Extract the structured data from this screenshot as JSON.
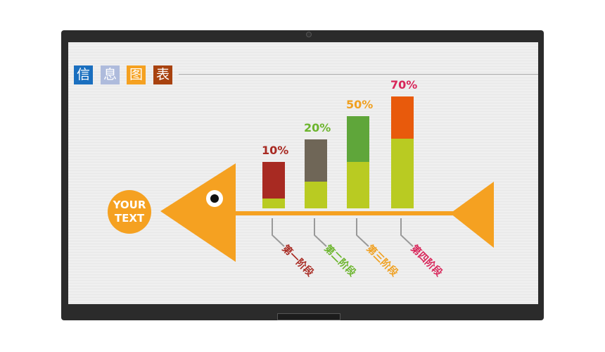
{
  "header": {
    "tiles": [
      {
        "char": "信",
        "color": "#1a6fbf"
      },
      {
        "char": "息",
        "color": "#aebbdc"
      },
      {
        "char": "图",
        "color": "#f5a121"
      },
      {
        "char": "表",
        "color": "#a8420f"
      }
    ]
  },
  "fish": {
    "head_text": "YOUR TEXT",
    "color": "#f5a121"
  },
  "chart_data": {
    "type": "bar",
    "categories": [
      "第一阶段",
      "第二阶段",
      "第三阶段",
      "第四阶段"
    ],
    "values": [
      10,
      20,
      50,
      70
    ],
    "value_labels": [
      "10%",
      "20%",
      "50%",
      "70%"
    ],
    "top_colors": [
      "#a82a22",
      "#6f6657",
      "#5fa63a",
      "#e85a0c"
    ],
    "base_color": "#b9cb22",
    "label_colors": [
      "#a82a22",
      "#6cb52d",
      "#f0a020",
      "#d8265a"
    ],
    "ylim": [
      0,
      100
    ]
  }
}
